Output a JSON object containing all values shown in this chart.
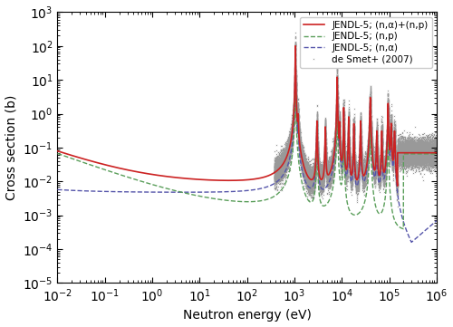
{
  "xlabel": "Neutron energy (eV)",
  "ylabel": "Cross section (b)",
  "xlim_log": [
    -2,
    6
  ],
  "ylim_log": [
    -5,
    3
  ],
  "legend": [
    {
      "label": "JENDL-5; (n,α)+(n,p)",
      "color": "#cc2222",
      "ls": "solid",
      "lw": 1.2
    },
    {
      "label": "JENDL-5; (n,p)",
      "color": "#5a9e5a",
      "ls": "dashed",
      "lw": 1.0
    },
    {
      "label": "JENDL-5; (n,α)",
      "color": "#5555aa",
      "ls": "dashed",
      "lw": 1.0
    },
    {
      "label": "de Smet+ (2007)",
      "color": "#999999",
      "ls": "solid",
      "lw": 0.5
    }
  ]
}
